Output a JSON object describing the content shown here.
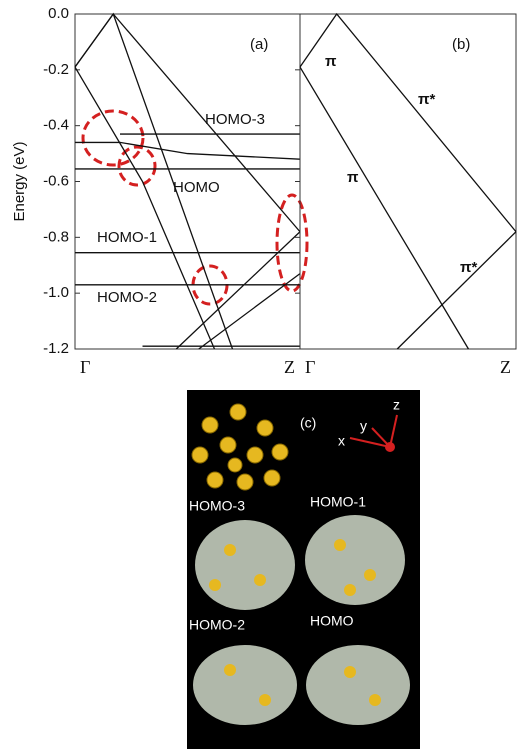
{
  "chart_data": [
    {
      "type": "line",
      "panel_label": "(a)",
      "ylabel": "Energy (eV)",
      "color": "#111",
      "xlim": [
        0,
        1
      ],
      "ylim": [
        -1.2,
        0
      ],
      "xticks": [
        {
          "value": 0,
          "label": "Γ"
        },
        {
          "value": 1,
          "label": "Z"
        }
      ],
      "yticks": [
        {
          "value": 0,
          "label": "0.0"
        },
        -0.2,
        -0.4,
        -0.6,
        -0.8,
        {
          "value": -1,
          "label": "-1.0"
        },
        -1.2
      ],
      "series": [
        {
          "x": [
            0,
            0.17,
            1
          ],
          "values": [
            -0.19,
            0,
            -0.78
          ]
        },
        {
          "x": [
            0,
            0.17,
            0.7
          ],
          "values": [
            -0.19,
            0,
            -1.2
          ]
        },
        {
          "x": [
            0,
            0.3,
            0.62
          ],
          "values": [
            -0.19,
            -0.6,
            -1.2
          ]
        },
        {
          "x": [
            0,
            0.2,
            0.5,
            1
          ],
          "values": [
            -0.46,
            -0.46,
            -0.5,
            -0.52
          ]
        },
        {
          "x": [
            0.2,
            1
          ],
          "values": [
            -0.43,
            -0.43
          ]
        },
        {
          "x": [
            0,
            1
          ],
          "values": [
            -0.555,
            -0.555
          ]
        },
        {
          "x": [
            0,
            1
          ],
          "values": [
            -0.855,
            -0.855
          ]
        },
        {
          "x": [
            0,
            1
          ],
          "values": [
            -0.97,
            -0.97
          ]
        },
        {
          "x": [
            1,
            0.45
          ],
          "values": [
            -0.78,
            -1.2
          ]
        },
        {
          "x": [
            1,
            0.55
          ],
          "values": [
            -0.93,
            -1.2
          ]
        },
        {
          "x": [
            0.3,
            1
          ],
          "values": [
            -1.19,
            -1.19
          ]
        }
      ],
      "annotations": [
        "HOMO-3",
        "HOMO",
        "HOMO-1",
        "HOMO-2"
      ]
    },
    {
      "type": "line",
      "panel_label": "(b)",
      "color": "#111",
      "xlim": [
        0,
        1
      ],
      "ylim": [
        -1.2,
        0
      ],
      "xticks": [
        {
          "value": 0,
          "label": "Γ"
        },
        {
          "value": 1,
          "label": "Z"
        }
      ],
      "series": [
        {
          "x": [
            0,
            0.17,
            1
          ],
          "values": [
            -0.19,
            0,
            -0.78
          ]
        },
        {
          "x": [
            0,
            0.78
          ],
          "values": [
            -0.19,
            -1.2
          ]
        },
        {
          "x": [
            1,
            0.45
          ],
          "values": [
            -0.78,
            -1.2
          ]
        }
      ],
      "annotations": [
        "π",
        "π*",
        "π",
        "π*"
      ]
    }
  ],
  "panel_c": {
    "label": "(c)",
    "orbitals": [
      "HOMO-3",
      "HOMO-1",
      "HOMO-2",
      "HOMO"
    ],
    "axes": [
      "x",
      "y",
      "z"
    ]
  }
}
